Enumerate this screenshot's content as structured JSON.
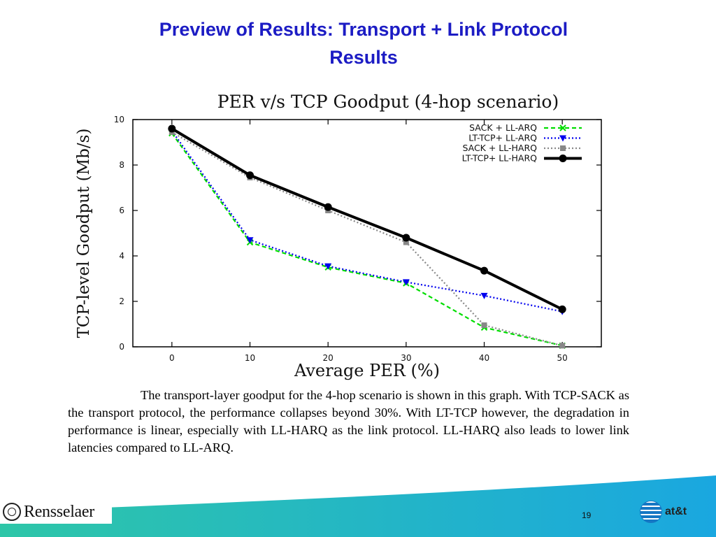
{
  "slide": {
    "title_line1": "Preview of Results: Transport + Link Protocol",
    "title_line2": "Results",
    "caption": "The transport-layer goodput for the 4-hop scenario is shown in this graph.  With TCP-SACK as the transport protocol, the performance collapses beyond 30%.  With LT-TCP however, the degradation in performance is linear, especially with LL-HARQ as the link protocol.  LL-HARQ also leads to lower link latencies compared to LL-ARQ.",
    "page_number": "19"
  },
  "logos": {
    "left": "Rensselaer",
    "right": "at&t"
  },
  "colors": {
    "title": "#1c1cc4",
    "footer_gradient_start": "#2ec6a8",
    "footer_gradient_end": "#1aa7e0"
  },
  "chart_data": {
    "type": "line",
    "title": "PER v/s TCP Goodput (4-hop scenario)",
    "xlabel": "Average PER (%)",
    "ylabel": "TCP-level Goodput (Mb/s)",
    "x": [
      0,
      10,
      20,
      30,
      40,
      50
    ],
    "xticks": [
      0,
      10,
      20,
      30,
      40,
      50
    ],
    "yticks": [
      0,
      2,
      4,
      6,
      8,
      10
    ],
    "xlim": [
      -5,
      55
    ],
    "ylim": [
      0,
      10
    ],
    "legend_position": "top-right",
    "series": [
      {
        "name": "SACK + LL-ARQ",
        "values": [
          9.4,
          4.6,
          3.5,
          2.8,
          0.85,
          0.05
        ],
        "color": "#00dd00",
        "dash": "dashed",
        "marker": "x"
      },
      {
        "name": "LT-TCP+ LL-ARQ",
        "values": [
          9.5,
          4.7,
          3.55,
          2.85,
          2.25,
          1.55
        ],
        "color": "#0000ee",
        "dash": "dotted",
        "marker": "triangle-down"
      },
      {
        "name": "SACK + LL-HARQ",
        "values": [
          9.45,
          7.45,
          6.0,
          4.6,
          0.95,
          0.05
        ],
        "color": "#888888",
        "dash": "dotted",
        "marker": "square"
      },
      {
        "name": "LT-TCP+ LL-HARQ",
        "values": [
          9.6,
          7.55,
          6.15,
          4.8,
          3.35,
          1.65
        ],
        "color": "#000000",
        "dash": "solid",
        "marker": "circle"
      }
    ]
  }
}
